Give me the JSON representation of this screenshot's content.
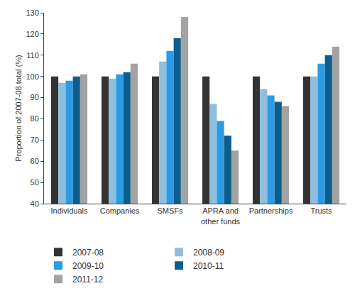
{
  "chart_data": {
    "type": "bar",
    "y_label": "Proportion of 2007-08 total (%)",
    "categories": [
      "Individuals",
      "Companies",
      "SMSFs",
      "APRA and other funds",
      "Partnerships",
      "Trusts"
    ],
    "series": [
      {
        "name": "2007-08",
        "color": "#333333",
        "values": [
          100,
          100,
          100,
          100,
          100,
          100
        ]
      },
      {
        "name": "2008-09",
        "color": "#8fbfdc",
        "values": [
          97,
          99,
          107,
          87,
          94,
          100
        ]
      },
      {
        "name": "2009-10",
        "color": "#2b9be6",
        "values": [
          98,
          101,
          112,
          79,
          91,
          106
        ]
      },
      {
        "name": "2010-11",
        "color": "#0b5d8c",
        "values": [
          100,
          102,
          118,
          72,
          88,
          110
        ]
      },
      {
        "name": "2011-12",
        "color": "#a3a3a3",
        "values": [
          101,
          106,
          128,
          65,
          86,
          114
        ]
      }
    ],
    "ylim": [
      40,
      130
    ],
    "yticks": [
      40,
      50,
      60,
      70,
      80,
      90,
      100,
      110,
      120,
      130
    ],
    "grid": false,
    "legend": "bottom"
  }
}
